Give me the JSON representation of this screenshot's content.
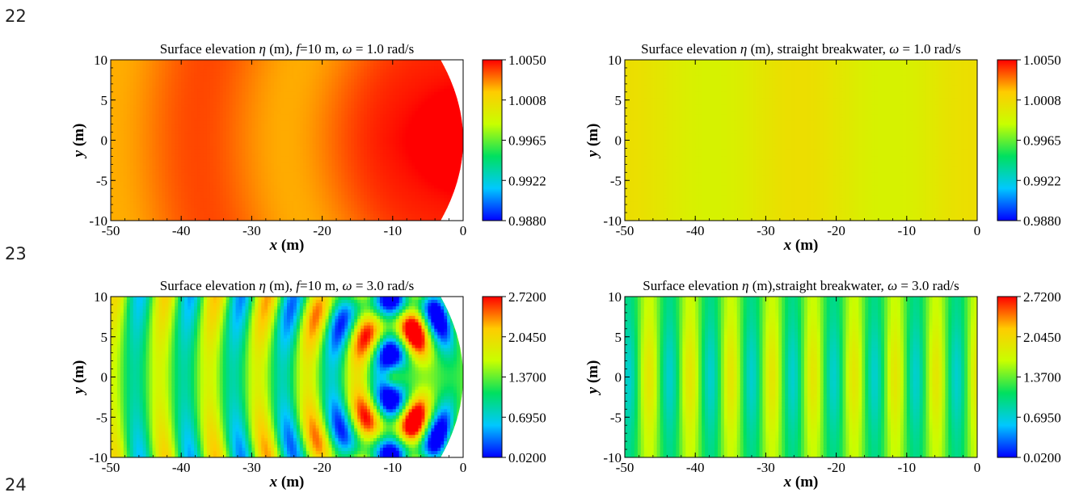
{
  "line_numbers": [
    "22",
    "23",
    "24"
  ],
  "chart_data": [
    {
      "type": "heatmap",
      "title": "Surface elevation η (m), f=10 m, ω = 1.0 rad/s",
      "title_parts": {
        "pre": "Surface elevation ",
        "eta": "η",
        "mid1": " (m), ",
        "f": "f",
        "mid2": "=10 m, ",
        "omega": "ω",
        "post": " = 1.0 rad/s"
      },
      "xlabel": {
        "var": "x",
        "unit": " (m)"
      },
      "ylabel": {
        "var": "y",
        "unit": " (m)"
      },
      "xlim": [
        -50,
        0
      ],
      "ylim": [
        -10,
        10
      ],
      "xticks": [
        "-50",
        "-40",
        "-30",
        "-20",
        "-10",
        "0"
      ],
      "yticks": [
        "10",
        "5",
        "0",
        "-5",
        "-10"
      ],
      "colorbar_ticks": [
        "1.0050",
        "1.0008",
        "0.9965",
        "0.9922",
        "0.9880"
      ],
      "colorbar_range": [
        0.988,
        1.005
      ],
      "breakwater": "curved",
      "omega": 1.0
    },
    {
      "type": "heatmap",
      "title": "Surface elevation η (m), straight breakwater, ω = 1.0 rad/s",
      "title_parts": {
        "pre": "Surface elevation ",
        "eta": "η",
        "mid1": " (m), straight breakwater, ",
        "omega": "ω",
        "post": " = 1.0 rad/s"
      },
      "xlabel": {
        "var": "x",
        "unit": " (m)"
      },
      "ylabel": {
        "var": "y",
        "unit": " (m)"
      },
      "xlim": [
        -50,
        0
      ],
      "ylim": [
        -10,
        10
      ],
      "xticks": [
        "-50",
        "-40",
        "-30",
        "-20",
        "-10",
        "0"
      ],
      "yticks": [
        "10",
        "5",
        "0",
        "-5",
        "-10"
      ],
      "colorbar_ticks": [
        "1.0050",
        "1.0008",
        "0.9965",
        "0.9922",
        "0.9880"
      ],
      "colorbar_range": [
        0.988,
        1.005
      ],
      "breakwater": "straight",
      "omega": 1.0
    },
    {
      "type": "heatmap",
      "title": "Surface elevation η (m), f=10 m, ω = 3.0 rad/s",
      "title_parts": {
        "pre": "Surface elevation ",
        "eta": "η",
        "mid1": " (m), ",
        "f": "f",
        "mid2": "=10 m, ",
        "omega": "ω",
        "post": " = 3.0 rad/s"
      },
      "xlabel": {
        "var": "x",
        "unit": " (m)"
      },
      "ylabel": {
        "var": "y",
        "unit": " (m)"
      },
      "xlim": [
        -50,
        0
      ],
      "ylim": [
        -10,
        10
      ],
      "xticks": [
        "-50",
        "-40",
        "-30",
        "-20",
        "-10",
        "0"
      ],
      "yticks": [
        "10",
        "5",
        "0",
        "-5",
        "-10"
      ],
      "colorbar_ticks": [
        "2.7200",
        "2.0450",
        "1.3700",
        "0.6950",
        "0.0200"
      ],
      "colorbar_range": [
        0.02,
        2.72
      ],
      "breakwater": "curved",
      "omega": 3.0
    },
    {
      "type": "heatmap",
      "title": "Surface elevation η (m),straight breakwater, ω = 3.0 rad/s",
      "title_parts": {
        "pre": "Surface elevation ",
        "eta": "η",
        "mid1": " (m),straight breakwater, ",
        "omega": "ω",
        "post": " = 3.0 rad/s"
      },
      "xlabel": {
        "var": "x",
        "unit": " (m)"
      },
      "ylabel": {
        "var": "y",
        "unit": " (m)"
      },
      "xlim": [
        -50,
        0
      ],
      "ylim": [
        -10,
        10
      ],
      "xticks": [
        "-50",
        "-40",
        "-30",
        "-20",
        "-10",
        "0"
      ],
      "yticks": [
        "10",
        "5",
        "0",
        "-5",
        "-10"
      ],
      "colorbar_ticks": [
        "2.7200",
        "2.0450",
        "1.3700",
        "0.6950",
        "0.0200"
      ],
      "colorbar_range": [
        0.02,
        2.72
      ],
      "breakwater": "straight",
      "omega": 3.0
    }
  ],
  "colormap": [
    "#0000ff",
    "#00c8ff",
    "#00e060",
    "#c8ff00",
    "#ffcc00",
    "#ff0000"
  ]
}
